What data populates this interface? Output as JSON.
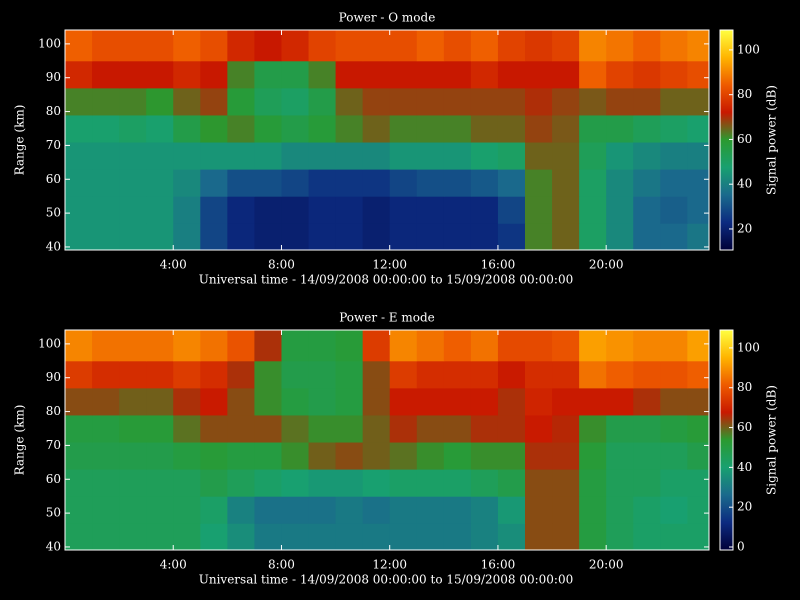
{
  "chart_data": [
    {
      "type": "heatmap",
      "title": "Power - O mode",
      "xlabel": "Universal time - 14/09/2008 00:00:00 to 15/09/2008 00:00:00",
      "ylabel": "Range (km)",
      "colorbar_label": "Signal power (dB)",
      "x_bins": [
        0,
        1,
        2,
        3,
        4,
        5,
        6,
        7,
        8,
        9,
        10,
        11,
        12,
        13,
        14,
        15,
        16,
        17,
        18,
        19,
        20,
        21,
        22,
        23,
        23.8
      ],
      "y_bins": [
        39.1,
        47,
        55,
        63,
        71,
        79,
        87,
        95,
        104.1
      ],
      "values": [
        [
          45,
          45,
          45,
          45,
          40,
          28,
          22,
          20,
          20,
          22,
          22,
          20,
          22,
          22,
          22,
          22,
          25,
          62,
          65,
          50,
          42,
          35,
          35,
          38
        ],
        [
          45,
          45,
          45,
          45,
          40,
          28,
          22,
          20,
          20,
          22,
          22,
          20,
          22,
          22,
          22,
          22,
          28,
          62,
          65,
          50,
          42,
          35,
          33,
          35
        ],
        [
          45,
          45,
          45,
          45,
          42,
          35,
          30,
          30,
          28,
          25,
          25,
          25,
          28,
          30,
          30,
          32,
          35,
          62,
          65,
          50,
          42,
          38,
          35,
          35
        ],
        [
          45,
          45,
          45,
          45,
          45,
          45,
          45,
          45,
          42,
          42,
          42,
          42,
          45,
          45,
          45,
          48,
          50,
          65,
          65,
          52,
          45,
          42,
          40,
          40
        ],
        [
          48,
          48,
          50,
          48,
          55,
          60,
          62,
          58,
          55,
          58,
          62,
          65,
          62,
          62,
          62,
          65,
          65,
          68,
          66,
          55,
          55,
          52,
          50,
          48
        ],
        [
          62,
          62,
          62,
          60,
          65,
          68,
          58,
          52,
          50,
          55,
          65,
          68,
          68,
          68,
          68,
          68,
          68,
          70,
          68,
          66,
          68,
          68,
          65,
          65
        ],
        [
          75,
          72,
          72,
          72,
          75,
          72,
          62,
          55,
          55,
          62,
          72,
          72,
          72,
          72,
          72,
          75,
          72,
          72,
          72,
          85,
          80,
          78,
          80,
          82
        ],
        [
          85,
          82,
          82,
          82,
          85,
          82,
          75,
          72,
          75,
          80,
          82,
          82,
          82,
          85,
          82,
          85,
          80,
          78,
          80,
          90,
          88,
          85,
          88,
          90
        ]
      ],
      "xlim": [
        0,
        23.8
      ],
      "ylim": [
        39.1,
        104.1
      ],
      "xticks": [
        {
          "value": 4,
          "label": "4:00"
        },
        {
          "value": 8,
          "label": "8:00"
        },
        {
          "value": 12,
          "label": "12:00"
        },
        {
          "value": 16,
          "label": "16:00"
        },
        {
          "value": 20,
          "label": "20:00"
        }
      ],
      "yticks": [
        40,
        50,
        60,
        70,
        80,
        90,
        100
      ],
      "zlim": [
        10.6,
        108.9
      ],
      "zticks": [
        20,
        40,
        60,
        80,
        100
      ],
      "colormap": [
        "#000038",
        "#0c2a80",
        "#1a6a8c",
        "#18a070",
        "#2a9a30",
        "#c81800",
        "#ee5a00",
        "#ffb400",
        "#ffff40"
      ]
    },
    {
      "type": "heatmap",
      "title": "Power - E mode",
      "xlabel": "Universal time - 14/09/2008 00:00:00 to 15/09/2008 00:00:00",
      "ylabel": "Range (km)",
      "colorbar_label": "Signal power (dB)",
      "x_bins": [
        0,
        1,
        2,
        3,
        4,
        5,
        6,
        7,
        8,
        9,
        10,
        11,
        12,
        13,
        14,
        15,
        16,
        17,
        18,
        19,
        20,
        21,
        22,
        23,
        23.8
      ],
      "y_bins": [
        39.1,
        47,
        55,
        63,
        71,
        79,
        87,
        95,
        104.1
      ],
      "values": [
        [
          45,
          45,
          45,
          45,
          45,
          40,
          35,
          30,
          30,
          30,
          30,
          30,
          30,
          30,
          30,
          32,
          35,
          62,
          62,
          50,
          45,
          42,
          42,
          42
        ],
        [
          45,
          45,
          45,
          45,
          45,
          42,
          32,
          28,
          28,
          28,
          30,
          28,
          30,
          30,
          30,
          32,
          38,
          62,
          62,
          50,
          45,
          42,
          40,
          42
        ],
        [
          45,
          45,
          45,
          45,
          45,
          48,
          45,
          42,
          40,
          38,
          38,
          40,
          42,
          42,
          42,
          45,
          48,
          62,
          62,
          50,
          45,
          45,
          42,
          42
        ],
        [
          48,
          48,
          48,
          48,
          50,
          52,
          50,
          50,
          55,
          60,
          62,
          60,
          58,
          55,
          52,
          55,
          55,
          65,
          65,
          52,
          45,
          45,
          45,
          48
        ],
        [
          50,
          50,
          52,
          52,
          58,
          62,
          62,
          62,
          58,
          55,
          55,
          60,
          65,
          62,
          62,
          65,
          65,
          68,
          66,
          55,
          48,
          48,
          50,
          52
        ],
        [
          62,
          62,
          60,
          60,
          65,
          68,
          62,
          55,
          50,
          48,
          50,
          62,
          68,
          68,
          68,
          68,
          65,
          70,
          68,
          68,
          68,
          65,
          62,
          62
        ],
        [
          75,
          72,
          72,
          72,
          75,
          72,
          65,
          55,
          48,
          48,
          50,
          62,
          75,
          72,
          72,
          72,
          68,
          72,
          72,
          85,
          82,
          80,
          80,
          82
        ],
        [
          88,
          85,
          85,
          85,
          88,
          85,
          80,
          65,
          50,
          50,
          52,
          75,
          88,
          85,
          82,
          85,
          78,
          78,
          80,
          92,
          90,
          88,
          88,
          92
        ]
      ],
      "xlim": [
        0,
        23.8
      ],
      "ylim": [
        39.1,
        104.1
      ],
      "xticks": [
        {
          "value": 4,
          "label": "4:00"
        },
        {
          "value": 8,
          "label": "8:00"
        },
        {
          "value": 12,
          "label": "12:00"
        },
        {
          "value": 16,
          "label": "16:00"
        },
        {
          "value": 20,
          "label": "20:00"
        }
      ],
      "yticks": [
        40,
        50,
        60,
        70,
        80,
        90,
        100
      ],
      "zlim": [
        -1.5,
        109
      ],
      "zticks": [
        0,
        20,
        40,
        60,
        80,
        100
      ],
      "colormap": [
        "#000038",
        "#0c2a80",
        "#1a6a8c",
        "#18a070",
        "#2a9a30",
        "#c81800",
        "#ee5a00",
        "#ffb400",
        "#ffff40"
      ]
    }
  ]
}
